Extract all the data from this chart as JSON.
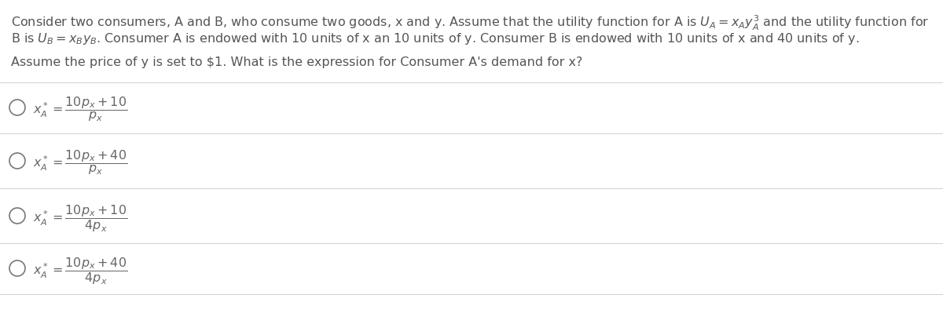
{
  "background_color": "#ffffff",
  "text_color": "#555555",
  "figsize": [
    12.0,
    3.99
  ],
  "dpi": 100,
  "paragraph1": "Consider two consumers, A and B, who consume two goods, x and y. Assume that the utility function for A is $U_A = x_A y_A^3$ and the utility function for",
  "paragraph1b": "B is $U_B = x_B y_B$. Consumer A is endowed with 10 units of x an 10 units of y. Consumer B is endowed with 10 units of x and 40 units of y.",
  "paragraph2": "Assume the price of y is set to $1. What is the expression for Consumer A's demand for x?",
  "options": [
    "$x^*_A = \\dfrac{10p_x+10}{p_x}$",
    "$x^*_A = \\dfrac{10p_x+40}{p_x}$",
    "$x^*_A = \\dfrac{10p_x+10}{4p_x}$",
    "$x^*_A = \\dfrac{10p_x+40}{4p_x}$"
  ],
  "font_size_main": 11.5,
  "font_size_option": 11.5,
  "text_color_light": "#888888"
}
